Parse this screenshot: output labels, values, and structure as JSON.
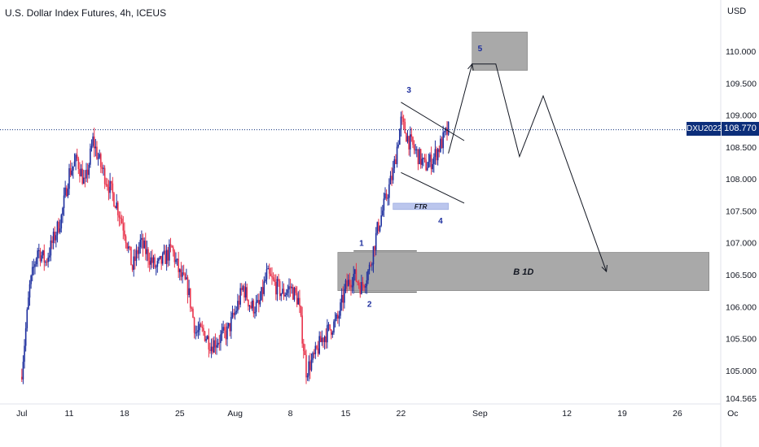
{
  "header": {
    "title": "U.S. Dollar Index Futures, 4h, ICEUS",
    "currency": "USD"
  },
  "last_price": {
    "symbol": "DXU2022",
    "value": "108.770"
  },
  "colors": {
    "up": "#1e2f9e",
    "down": "#e8344c",
    "last_price": "#0c2e7a",
    "zone": "#9a9a9a",
    "ftr_zone": "#aab8e8",
    "wave_label": "#1e2f9e"
  },
  "annotations": {
    "zone_b1d": "B 1D",
    "zone_ftr": "FTR",
    "wave_1": "1",
    "wave_2": "2",
    "wave_3": "3",
    "wave_4": "4",
    "wave_5": "5"
  },
  "chart_data": {
    "type": "candlestick",
    "title": "U.S. Dollar Index Futures, 4h, ICEUS",
    "ylabel": "USD",
    "ylim": [
      104.2,
      110.8
    ],
    "y_ticks": [
      "110.000",
      "109.500",
      "109.000",
      "108.500",
      "108.000",
      "107.500",
      "107.000",
      "106.500",
      "106.000",
      "105.500",
      "105.000",
      "104.565"
    ],
    "y_tick_values": [
      110.0,
      109.5,
      109.0,
      108.5,
      108.0,
      107.5,
      107.0,
      106.5,
      106.0,
      105.5,
      105.0,
      104.565
    ],
    "x_ticks": [
      "Jul",
      "11",
      "18",
      "25",
      "Aug",
      "8",
      "15",
      "22",
      "Sep",
      "12",
      "19",
      "26",
      "Oc"
    ],
    "x_tick_days": [
      -6,
      0,
      7,
      14,
      21,
      28,
      35,
      42,
      52,
      63,
      70,
      77,
      84
    ],
    "x_tick_dates": [
      "2022-07-04",
      "2022-07-11",
      "2022-07-18",
      "2022-07-25",
      "2022-08-01",
      "2022-08-08",
      "2022-08-15",
      "2022-08-22",
      "2022-09-01",
      "2022-09-12",
      "2022-09-19",
      "2022-09-26",
      "2022-10-03"
    ],
    "anchors": [
      [
        "2022-07-05",
        105.0
      ],
      [
        "2022-07-06",
        106.3
      ],
      [
        "2022-07-07",
        106.9
      ],
      [
        "2022-07-08",
        106.7
      ],
      [
        "2022-07-10",
        107.4
      ],
      [
        "2022-07-11",
        108.1
      ],
      [
        "2022-07-12",
        108.3
      ],
      [
        "2022-07-13",
        107.9
      ],
      [
        "2022-07-14",
        108.6
      ],
      [
        "2022-07-15",
        108.2
      ],
      [
        "2022-07-17",
        107.6
      ],
      [
        "2022-07-18",
        107.2
      ],
      [
        "2022-07-19",
        106.6
      ],
      [
        "2022-07-20",
        107.0
      ],
      [
        "2022-07-21",
        106.8
      ],
      [
        "2022-07-22",
        106.6
      ],
      [
        "2022-07-24",
        106.9
      ],
      [
        "2022-07-25",
        106.5
      ],
      [
        "2022-07-26",
        106.3
      ],
      [
        "2022-07-27",
        105.6
      ],
      [
        "2022-07-28",
        105.6
      ],
      [
        "2022-07-29",
        105.4
      ],
      [
        "2022-07-31",
        105.6
      ],
      [
        "2022-08-01",
        105.9
      ],
      [
        "2022-08-02",
        106.3
      ],
      [
        "2022-08-03",
        106.0
      ],
      [
        "2022-08-04",
        106.0
      ],
      [
        "2022-08-05",
        106.5
      ],
      [
        "2022-08-07",
        106.2
      ],
      [
        "2022-08-08",
        106.3
      ],
      [
        "2022-08-09",
        106.1
      ],
      [
        "2022-08-10",
        105.0
      ],
      [
        "2022-08-11",
        105.2
      ],
      [
        "2022-08-12",
        105.5
      ],
      [
        "2022-08-14",
        105.8
      ],
      [
        "2022-08-15",
        106.3
      ],
      [
        "2022-08-16",
        106.5
      ],
      [
        "2022-08-17",
        106.3
      ],
      [
        "2022-08-18",
        106.6
      ],
      [
        "2022-08-19",
        107.2
      ],
      [
        "2022-08-21",
        108.1
      ],
      [
        "2022-08-22",
        108.9
      ],
      [
        "2022-08-23",
        108.6
      ],
      [
        "2022-08-24",
        108.4
      ],
      [
        "2022-08-25",
        108.2
      ],
      [
        "2022-08-26",
        108.3
      ],
      [
        "2022-08-28",
        108.77
      ]
    ],
    "zones": [
      {
        "label": "",
        "x": [
          "2022-08-31",
          "2022-09-07"
        ],
        "y": [
          109.7,
          110.3
        ]
      },
      {
        "label": "B 1D",
        "x": [
          "2022-08-14",
          "2022-09-30"
        ],
        "y": [
          106.25,
          106.85
        ]
      },
      {
        "label": "FTR",
        "x": [
          "2022-08-21",
          "2022-08-28"
        ],
        "y": [
          107.52,
          107.62
        ]
      }
    ],
    "channel": [
      {
        "x": [
          "2022-08-22",
          "2022-08-30"
        ],
        "y": [
          109.2,
          108.6
        ]
      },
      {
        "x": [
          "2022-08-22",
          "2022-08-30"
        ],
        "y": [
          108.1,
          107.62
        ]
      }
    ],
    "projection": {
      "x": [
        "2022-08-28",
        "2022-08-31",
        "2022-09-03",
        "2022-09-06",
        "2022-09-09",
        "2022-09-17"
      ],
      "y": [
        108.4,
        109.8,
        109.8,
        108.35,
        109.3,
        106.55
      ]
    },
    "wave_labels": [
      {
        "label": "1",
        "date": "2022-08-17",
        "y": 106.95
      },
      {
        "label": "2",
        "date": "2022-08-18",
        "y": 106.0
      },
      {
        "label": "3",
        "date": "2022-08-23",
        "y": 109.35
      },
      {
        "label": "4",
        "date": "2022-08-27",
        "y": 107.3
      },
      {
        "label": "5",
        "date": "2022-09-01",
        "y": 110.0
      }
    ],
    "last_price": 108.77,
    "grid": false,
    "legend": "none"
  }
}
